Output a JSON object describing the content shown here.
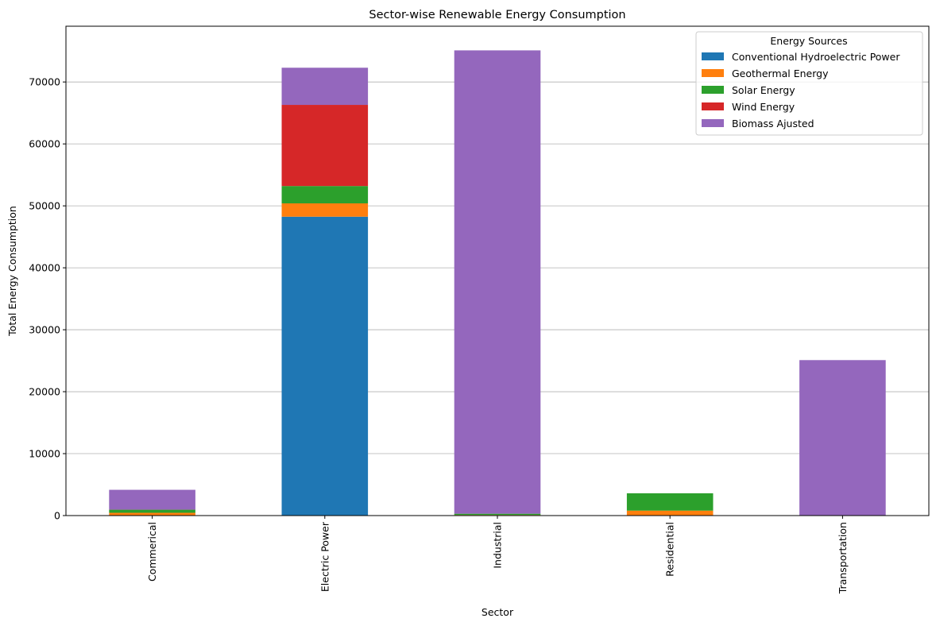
{
  "chart_data": {
    "type": "bar",
    "stacked": true,
    "title": "Sector-wise Renewable Energy Consumption",
    "xlabel": "Sector",
    "ylabel": "Total Energy Consumption",
    "ylim": [
      0,
      79000
    ],
    "yticks": [
      0,
      10000,
      20000,
      30000,
      40000,
      50000,
      60000,
      70000
    ],
    "grid": "y",
    "legend_title": "Energy Sources",
    "legend_position": "top-right",
    "categories": [
      "Commerical",
      "Electric Power",
      "Industrial",
      "Residential",
      "Transportation"
    ],
    "series": [
      {
        "name": "Conventional Hydroelectric Power",
        "color": "#1f77b4",
        "values": [
          30,
          48250,
          60,
          0,
          0
        ]
      },
      {
        "name": "Geothermal Energy",
        "color": "#ff7f0e",
        "values": [
          420,
          2150,
          40,
          800,
          0
        ]
      },
      {
        "name": "Solar Energy",
        "color": "#2ca02c",
        "values": [
          500,
          2800,
          200,
          2800,
          0
        ]
      },
      {
        "name": "Wind Energy",
        "color": "#d62728",
        "values": [
          10,
          13100,
          0,
          0,
          0
        ]
      },
      {
        "name": "Biomass Ajusted",
        "color": "#9467bd",
        "values": [
          3200,
          6000,
          74800,
          0,
          25100
        ]
      }
    ]
  }
}
